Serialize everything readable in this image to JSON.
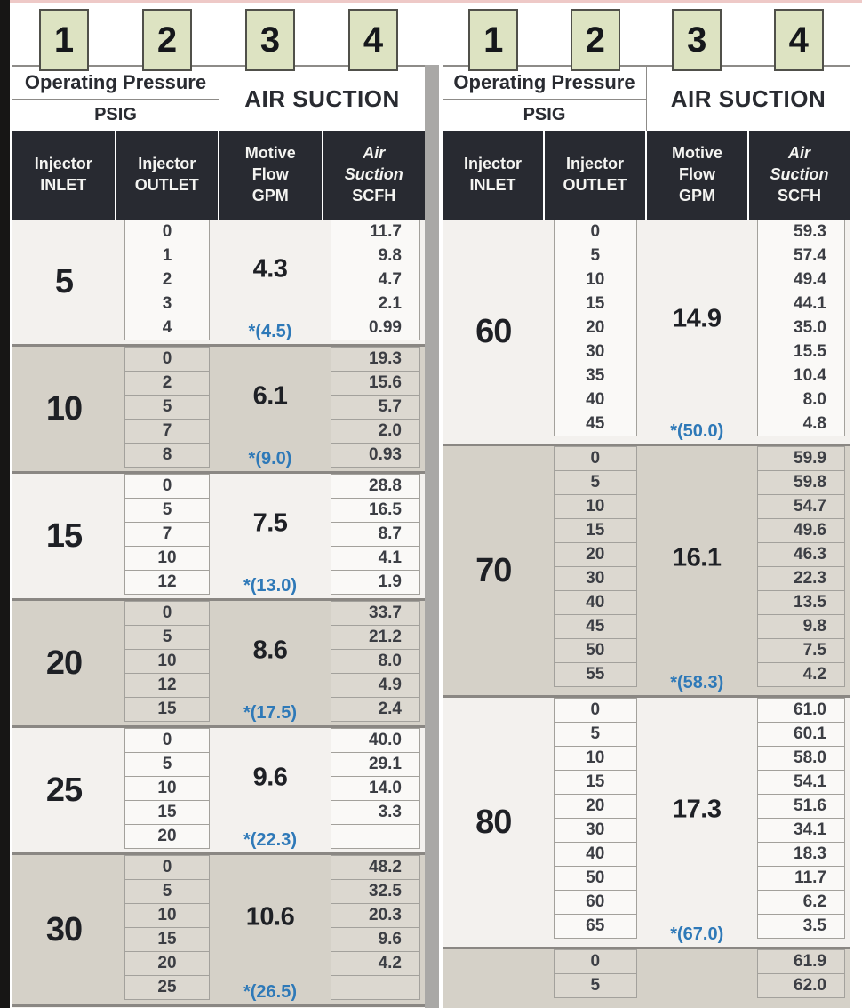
{
  "colors": {
    "accent_blue": "#2e79b8",
    "badge_green": "#dde3c2",
    "header_dark": "#282a31",
    "band_light": "#f3f1ee",
    "band_dark": "#d5d1c8",
    "divider_gray": "#a9a8a6"
  },
  "badges": [
    "1",
    "2",
    "3",
    "4"
  ],
  "header": {
    "pressure_title": "Operating Pressure",
    "pressure_unit": "PSIG",
    "suction_title": "AIR SUCTION",
    "columns": [
      {
        "lines": [
          "Injector",
          "INLET"
        ]
      },
      {
        "lines": [
          "Injector",
          "OUTLET"
        ]
      },
      {
        "lines": [
          "Motive",
          "Flow",
          "GPM"
        ]
      },
      {
        "lines": [
          "Air",
          "Suction",
          "SCFH"
        ],
        "italic_lines": 2
      }
    ]
  },
  "tables": [
    {
      "side": "left",
      "bottom_sliver": true,
      "sections": [
        {
          "inlet": "5",
          "gpm": "4.3",
          "gpm_note": "*(4.5)",
          "rows": [
            {
              "outlet": "0",
              "scfh": "11.7"
            },
            {
              "outlet": "1",
              "scfh": "9.8"
            },
            {
              "outlet": "2",
              "scfh": "4.7"
            },
            {
              "outlet": "3",
              "scfh": "2.1"
            },
            {
              "outlet": "4",
              "scfh": "0.99"
            }
          ]
        },
        {
          "inlet": "10",
          "gpm": "6.1",
          "gpm_note": "*(9.0)",
          "rows": [
            {
              "outlet": "0",
              "scfh": "19.3"
            },
            {
              "outlet": "2",
              "scfh": "15.6"
            },
            {
              "outlet": "5",
              "scfh": "5.7"
            },
            {
              "outlet": "7",
              "scfh": "2.0"
            },
            {
              "outlet": "8",
              "scfh": "0.93"
            }
          ]
        },
        {
          "inlet": "15",
          "gpm": "7.5",
          "gpm_note": "*(13.0)",
          "rows": [
            {
              "outlet": "0",
              "scfh": "28.8"
            },
            {
              "outlet": "5",
              "scfh": "16.5"
            },
            {
              "outlet": "7",
              "scfh": "8.7"
            },
            {
              "outlet": "10",
              "scfh": "4.1"
            },
            {
              "outlet": "12",
              "scfh": "1.9"
            }
          ]
        },
        {
          "inlet": "20",
          "gpm": "8.6",
          "gpm_note": "*(17.5)",
          "rows": [
            {
              "outlet": "0",
              "scfh": "33.7"
            },
            {
              "outlet": "5",
              "scfh": "21.2"
            },
            {
              "outlet": "10",
              "scfh": "8.0"
            },
            {
              "outlet": "12",
              "scfh": "4.9"
            },
            {
              "outlet": "15",
              "scfh": "2.4"
            }
          ]
        },
        {
          "inlet": "25",
          "gpm": "9.6",
          "gpm_note": "*(22.3)",
          "rows": [
            {
              "outlet": "0",
              "scfh": "40.0"
            },
            {
              "outlet": "5",
              "scfh": "29.1"
            },
            {
              "outlet": "10",
              "scfh": "14.0"
            },
            {
              "outlet": "15",
              "scfh": "3.3"
            },
            {
              "outlet": "20",
              "scfh": ""
            }
          ]
        },
        {
          "inlet": "30",
          "gpm": "10.6",
          "gpm_note": "*(26.5)",
          "rows": [
            {
              "outlet": "0",
              "scfh": "48.2"
            },
            {
              "outlet": "5",
              "scfh": "32.5"
            },
            {
              "outlet": "10",
              "scfh": "20.3"
            },
            {
              "outlet": "15",
              "scfh": "9.6"
            },
            {
              "outlet": "20",
              "scfh": "4.2"
            },
            {
              "outlet": "25",
              "scfh": ""
            }
          ]
        }
      ]
    },
    {
      "side": "right",
      "partial_last": true,
      "sections": [
        {
          "inlet": "60",
          "gpm": "14.9",
          "gpm_note": "*(50.0)",
          "rows": [
            {
              "outlet": "0",
              "scfh": "59.3"
            },
            {
              "outlet": "5",
              "scfh": "57.4"
            },
            {
              "outlet": "10",
              "scfh": "49.4"
            },
            {
              "outlet": "15",
              "scfh": "44.1"
            },
            {
              "outlet": "20",
              "scfh": "35.0"
            },
            {
              "outlet": "30",
              "scfh": "15.5"
            },
            {
              "outlet": "35",
              "scfh": "10.4"
            },
            {
              "outlet": "40",
              "scfh": "8.0"
            },
            {
              "outlet": "45",
              "scfh": "4.8"
            }
          ]
        },
        {
          "inlet": "70",
          "gpm": "16.1",
          "gpm_note": "*(58.3)",
          "rows": [
            {
              "outlet": "0",
              "scfh": "59.9"
            },
            {
              "outlet": "5",
              "scfh": "59.8"
            },
            {
              "outlet": "10",
              "scfh": "54.7"
            },
            {
              "outlet": "15",
              "scfh": "49.6"
            },
            {
              "outlet": "20",
              "scfh": "46.3"
            },
            {
              "outlet": "30",
              "scfh": "22.3"
            },
            {
              "outlet": "40",
              "scfh": "13.5"
            },
            {
              "outlet": "45",
              "scfh": "9.8"
            },
            {
              "outlet": "50",
              "scfh": "7.5"
            },
            {
              "outlet": "55",
              "scfh": "4.2"
            }
          ]
        },
        {
          "inlet": "80",
          "gpm": "17.3",
          "gpm_note": "*(67.0)",
          "rows": [
            {
              "outlet": "0",
              "scfh": "61.0"
            },
            {
              "outlet": "5",
              "scfh": "60.1"
            },
            {
              "outlet": "10",
              "scfh": "58.0"
            },
            {
              "outlet": "15",
              "scfh": "54.1"
            },
            {
              "outlet": "20",
              "scfh": "51.6"
            },
            {
              "outlet": "30",
              "scfh": "34.1"
            },
            {
              "outlet": "40",
              "scfh": "18.3"
            },
            {
              "outlet": "50",
              "scfh": "11.7"
            },
            {
              "outlet": "60",
              "scfh": "6.2"
            },
            {
              "outlet": "65",
              "scfh": "3.5"
            }
          ]
        },
        {
          "inlet": "",
          "gpm": "",
          "gpm_note": "",
          "rows": [
            {
              "outlet": "0",
              "scfh": "61.9"
            },
            {
              "outlet": "5",
              "scfh": "62.0"
            }
          ]
        }
      ]
    }
  ]
}
